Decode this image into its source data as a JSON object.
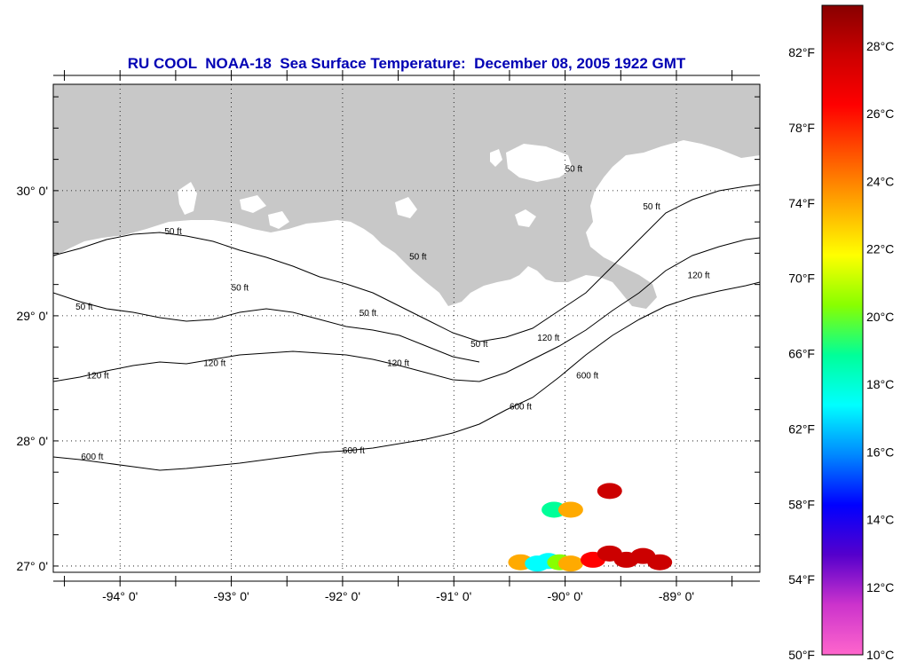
{
  "title": "RU COOL  NOAA-18  Sea Surface Temperature:  December 08, 2005 1922 GMT",
  "map": {
    "lon_range": [
      -94.6,
      -88.25
    ],
    "lat_range": [
      26.95,
      30.85
    ],
    "lat_ticks": [
      {
        "value": 30,
        "label": "30° 0'"
      },
      {
        "value": 29,
        "label": "29° 0'"
      },
      {
        "value": 28,
        "label": "28° 0'"
      },
      {
        "value": 27,
        "label": "27° 0'"
      }
    ],
    "lon_ticks": [
      {
        "value": -94,
        "label": "-94° 0'"
      },
      {
        "value": -93,
        "label": "-93° 0'"
      },
      {
        "value": -92,
        "label": "-92° 0'"
      },
      {
        "value": -91,
        "label": "-91° 0'"
      },
      {
        "value": -90,
        "label": "-90° 0'"
      },
      {
        "value": -89,
        "label": "-89° 0'"
      }
    ],
    "land_color": "#c8c8c8",
    "ocean_color": "#ffffff",
    "contour_labels": [
      {
        "text": "50 ft",
        "lon": -93.6,
        "lat": 29.65
      },
      {
        "text": "50 ft",
        "lon": -93.0,
        "lat": 29.2
      },
      {
        "text": "50 ft",
        "lon": -91.85,
        "lat": 29.0
      },
      {
        "text": "50 ft",
        "lon": -91.4,
        "lat": 29.45
      },
      {
        "text": "50 ft",
        "lon": -90.85,
        "lat": 28.75
      },
      {
        "text": "50 ft",
        "lon": -90.0,
        "lat": 30.15
      },
      {
        "text": "50 ft",
        "lon": -89.3,
        "lat": 29.85
      },
      {
        "text": "50 ft",
        "lon": -94.4,
        "lat": 29.05
      },
      {
        "text": "120 ft",
        "lon": -94.3,
        "lat": 28.5
      },
      {
        "text": "120 ft",
        "lon": -93.25,
        "lat": 28.6
      },
      {
        "text": "120 ft",
        "lon": -91.6,
        "lat": 28.6
      },
      {
        "text": "120 ft",
        "lon": -90.25,
        "lat": 28.8
      },
      {
        "text": "120 ft",
        "lon": -88.9,
        "lat": 29.3
      },
      {
        "text": "600 ft",
        "lon": -94.35,
        "lat": 27.85
      },
      {
        "text": "600 ft",
        "lon": -92.0,
        "lat": 27.9
      },
      {
        "text": "600 ft",
        "lon": -90.5,
        "lat": 28.25
      },
      {
        "text": "600 ft",
        "lon": -89.9,
        "lat": 28.5
      }
    ],
    "sst_patches": [
      {
        "lon": -90.4,
        "lat": 27.03,
        "temp_c": 23
      },
      {
        "lon": -90.25,
        "lat": 27.02,
        "temp_c": 18
      },
      {
        "lon": -90.15,
        "lat": 27.04,
        "temp_c": 17
      },
      {
        "lon": -90.05,
        "lat": 27.03,
        "temp_c": 21
      },
      {
        "lon": -89.95,
        "lat": 27.02,
        "temp_c": 24
      },
      {
        "lon": -89.75,
        "lat": 27.05,
        "temp_c": 26
      },
      {
        "lon": -89.6,
        "lat": 27.1,
        "temp_c": 27
      },
      {
        "lon": -89.45,
        "lat": 27.05,
        "temp_c": 27
      },
      {
        "lon": -89.3,
        "lat": 27.08,
        "temp_c": 27
      },
      {
        "lon": -89.15,
        "lat": 27.03,
        "temp_c": 27
      },
      {
        "lon": -90.1,
        "lat": 27.45,
        "temp_c": 19
      },
      {
        "lon": -89.95,
        "lat": 27.45,
        "temp_c": 23
      },
      {
        "lon": -89.6,
        "lat": 27.6,
        "temp_c": 27
      }
    ]
  },
  "colorbar": {
    "stops": [
      "#ff66cc",
      "#cc33cc",
      "#5500cc",
      "#0000ff",
      "#0088ff",
      "#00ffff",
      "#00ff99",
      "#88ff00",
      "#ffff00",
      "#ffaa00",
      "#ff5500",
      "#ff0000",
      "#cc0000",
      "#880000"
    ],
    "celsius_labels": [
      "10°C",
      "12°C",
      "14°C",
      "16°C",
      "18°C",
      "20°C",
      "22°C",
      "24°C",
      "26°C",
      "28°C"
    ],
    "fahrenheit_labels": [
      "50°F",
      "54°F",
      "58°F",
      "62°F",
      "66°F",
      "70°F",
      "74°F",
      "78°F",
      "82°F"
    ]
  }
}
